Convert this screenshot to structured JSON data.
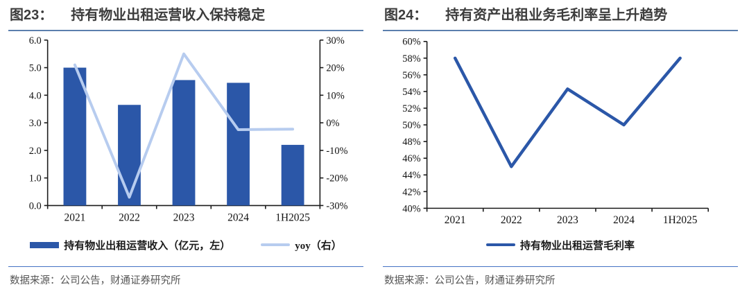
{
  "figures": [
    {
      "fig_label": "图23：",
      "title": "持有物业出租运营收入保持稳定",
      "source": "数据来源：公司公告，财通证券研究所",
      "legend": [
        {
          "label": "持有物业出租运营收入（亿元，左）",
          "swatch": "bar",
          "color": "#2B57A8"
        },
        {
          "label": "yoy（右）",
          "swatch": "line",
          "color": "#B7CCEF"
        }
      ]
    },
    {
      "fig_label": "图24：",
      "title": "持有资产出租业务毛利率呈上升趋势",
      "source": "数据来源：公司公告，财通证券研究所",
      "legend": [
        {
          "label": "持有物业出租运营毛利率",
          "swatch": "line",
          "color": "#2B57A8"
        }
      ]
    }
  ],
  "colors": {
    "bar_blue": "#2B57A8",
    "light_blue": "#B7CCEF",
    "title_text": "#3C3C3C",
    "title_underline": "#5B7FAD",
    "separator_blue": "#4472C4",
    "source_text": "#555555",
    "axis": "#1A1A1A"
  },
  "chart_data": [
    {
      "type": "bar",
      "title": "持有物业出租运营收入保持稳定",
      "categories": [
        "2021",
        "2022",
        "2023",
        "2024",
        "1H2025"
      ],
      "series": [
        {
          "name": "持有物业出租运营收入（亿元，左）",
          "kind": "bar",
          "axis": "left",
          "color": "#2B57A8",
          "values": [
            5.0,
            3.65,
            4.55,
            4.45,
            2.2
          ]
        },
        {
          "name": "yoy（右）",
          "kind": "line",
          "axis": "right",
          "color": "#B7CCEF",
          "values": [
            21,
            -27,
            25,
            -2.5,
            -2.3
          ]
        }
      ],
      "left_axis": {
        "min": 0,
        "max": 6,
        "step": 1,
        "tick_labels": [
          "0.0",
          "1.0",
          "2.0",
          "3.0",
          "4.0",
          "5.0",
          "6.0"
        ]
      },
      "right_axis": {
        "min": -30,
        "max": 30,
        "step": 10,
        "tick_labels": [
          "-30%",
          "-20%",
          "-10%",
          "0%",
          "10%",
          "20%",
          "30%"
        ]
      },
      "grid": false,
      "legend_position": "bottom"
    },
    {
      "type": "line",
      "title": "持有资产出租业务毛利率呈上升趋势",
      "categories": [
        "2021",
        "2022",
        "2023",
        "2024",
        "1H2025"
      ],
      "series": [
        {
          "name": "持有物业出租运营毛利率",
          "kind": "line",
          "axis": "left",
          "color": "#2B57A8",
          "values": [
            58,
            45,
            54.3,
            50,
            58
          ]
        }
      ],
      "left_axis": {
        "min": 40,
        "max": 60,
        "step": 2,
        "tick_labels": [
          "40%",
          "42%",
          "44%",
          "46%",
          "48%",
          "50%",
          "52%",
          "54%",
          "56%",
          "58%",
          "60%"
        ]
      },
      "grid": false,
      "legend_position": "bottom"
    }
  ]
}
